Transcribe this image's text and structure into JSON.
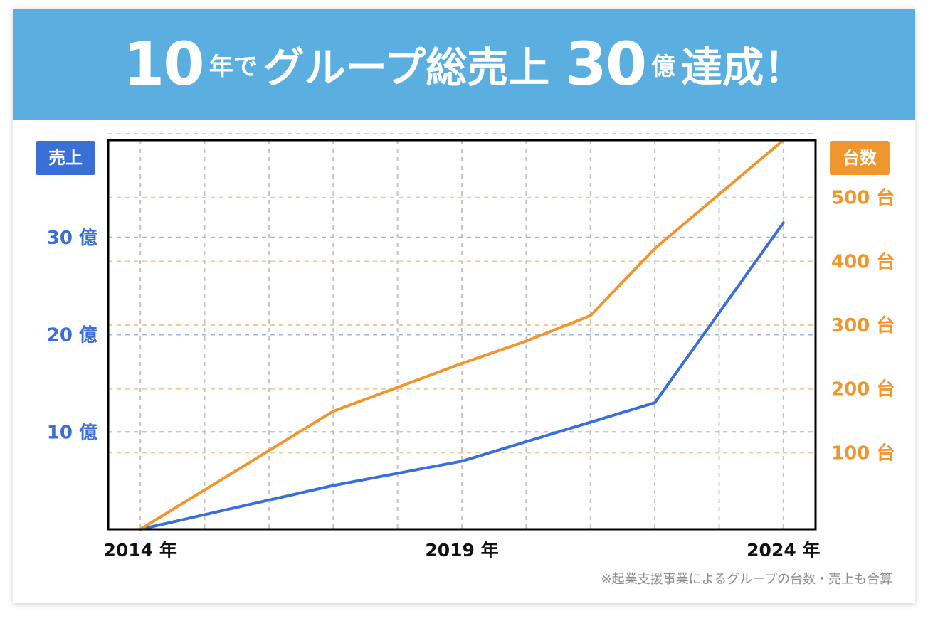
{
  "headline": {
    "num1": "10",
    "t1": "年で",
    "t2": "グループ総売上",
    "num2": "30",
    "t3": "億",
    "t4": "達成！"
  },
  "labels": {
    "left_tag": "売上",
    "right_tag": "台数"
  },
  "footnote": "※起業支援事業によるグループの台数・売上も合算",
  "colors": {
    "banner": "#5aaee0",
    "sales": "#3a6fd8",
    "units": "#f0962e"
  },
  "chart_data": {
    "type": "line",
    "x": [
      2014,
      2015,
      2016,
      2017,
      2018,
      2019,
      2020,
      2021,
      2022,
      2023,
      2024
    ],
    "x_tick_labels": [
      "2014 年",
      "2019 年",
      "2024 年"
    ],
    "xlim": [
      2013.5,
      2024.5
    ],
    "y_left": {
      "ylim": [
        0,
        40
      ],
      "ticks": [
        10,
        20,
        30
      ],
      "tick_labels": [
        "10 億",
        "20 億",
        "30 億"
      ]
    },
    "y_right": {
      "ylim": [
        -20,
        590
      ],
      "ticks": [
        100,
        200,
        300,
        400,
        500
      ],
      "tick_labels": [
        "100 台",
        "200 台",
        "300 台",
        "400 台",
        "500 台"
      ]
    },
    "series": [
      {
        "axis": "left",
        "color": "#3a6fd8",
        "points": [
          [
            2014,
            0
          ],
          [
            2017,
            4.5
          ],
          [
            2019,
            7
          ],
          [
            2021,
            11
          ],
          [
            2022,
            13
          ],
          [
            2024,
            31.5
          ]
        ]
      },
      {
        "axis": "right",
        "color": "#f0962e",
        "points": [
          [
            2014,
            -20
          ],
          [
            2017,
            165
          ],
          [
            2019,
            240
          ],
          [
            2020,
            275
          ],
          [
            2021,
            315
          ],
          [
            2022,
            420
          ],
          [
            2024,
            590
          ]
        ]
      }
    ],
    "grid": true
  }
}
